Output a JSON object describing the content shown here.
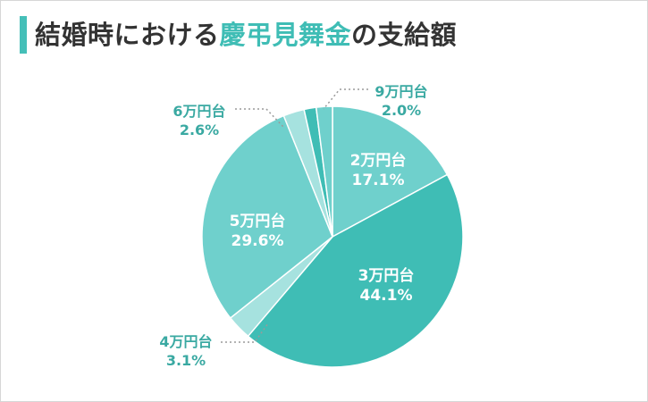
{
  "title": {
    "prefix": "結婚時における",
    "highlight": "慶弔見舞金",
    "suffix": "の支給額"
  },
  "colors": {
    "accent": "#3fbdb5",
    "slice_dark": "#3fbdb5",
    "slice_mid": "#6fd0cc",
    "slice_light": "#a6e2df",
    "leader": "#9a9a9a",
    "label_on_slice": "#ffffff",
    "label_outside": "#3aa9a2"
  },
  "chart_data": {
    "type": "pie",
    "title": "結婚時における慶弔見舞金の支給額",
    "slices": [
      {
        "name": "2万円台",
        "value": 17.1,
        "label": "17.1%",
        "color": "#6fd0cc",
        "label_pos": "inside"
      },
      {
        "name": "3万円台",
        "value": 44.1,
        "label": "44.1%",
        "color": "#3fbdb5",
        "label_pos": "inside"
      },
      {
        "name": "4万円台",
        "value": 3.1,
        "label": "3.1%",
        "color": "#a6e2df",
        "label_pos": "outside"
      },
      {
        "name": "5万円台",
        "value": 29.6,
        "label": "29.6%",
        "color": "#6fd0cc",
        "label_pos": "inside"
      },
      {
        "name": "6万円台",
        "value": 2.6,
        "label": "2.6%",
        "color": "#a6e2df",
        "label_pos": "outside"
      },
      {
        "name": "",
        "value": 1.5,
        "label": "",
        "color": "#3fbdb5",
        "label_pos": "none"
      },
      {
        "name": "9万円台",
        "value": 2.0,
        "label": "2.0%",
        "color": "#6fd0cc",
        "label_pos": "outside"
      }
    ]
  }
}
